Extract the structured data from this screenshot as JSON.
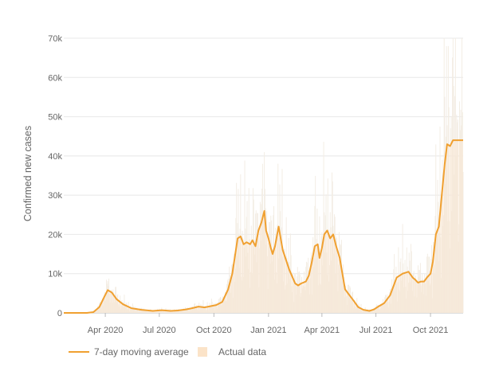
{
  "colors": {
    "line": "#f0a030",
    "actual_fill": "#fbe3c8",
    "actual_bar": "#f3ede4",
    "grid": "#e8e8e8",
    "text": "#666666"
  },
  "chart_data": {
    "type": "line",
    "ylabel": "Confirmed new cases",
    "xlabel": "",
    "title": "",
    "x_range": [
      "2020-01-22",
      "2021-11-25"
    ],
    "ylim": [
      0,
      70000
    ],
    "y_ticks": [
      0,
      10000,
      20000,
      30000,
      40000,
      50000,
      60000,
      70000
    ],
    "y_tick_labels": [
      "0",
      "10k",
      "20k",
      "30k",
      "40k",
      "50k",
      "60k",
      "70k"
    ],
    "x_ticks": [
      "2020-04-01",
      "2020-07-01",
      "2020-10-01",
      "2021-01-01",
      "2021-04-01",
      "2021-07-01",
      "2021-10-01"
    ],
    "x_tick_labels": [
      "Apr 2020",
      "Jul 2020",
      "Oct 2020",
      "Jan 2021",
      "Apr 2021",
      "Jul 2021",
      "Oct 2021"
    ],
    "grid": true,
    "legend_position": "bottom-left",
    "series": [
      {
        "name": "7-day moving average",
        "type": "line",
        "x": [
          "2020-01-22",
          "2020-03-01",
          "2020-03-12",
          "2020-03-22",
          "2020-03-30",
          "2020-04-05",
          "2020-04-12",
          "2020-04-20",
          "2020-05-01",
          "2020-05-15",
          "2020-06-01",
          "2020-06-20",
          "2020-07-05",
          "2020-07-12",
          "2020-07-20",
          "2020-08-01",
          "2020-08-15",
          "2020-08-25",
          "2020-09-05",
          "2020-09-15",
          "2020-09-25",
          "2020-10-05",
          "2020-10-15",
          "2020-10-25",
          "2020-11-01",
          "2020-11-05",
          "2020-11-10",
          "2020-11-15",
          "2020-11-20",
          "2020-11-25",
          "2020-12-01",
          "2020-12-05",
          "2020-12-10",
          "2020-12-15",
          "2020-12-20",
          "2020-12-25",
          "2020-12-28",
          "2021-01-01",
          "2021-01-05",
          "2021-01-08",
          "2021-01-12",
          "2021-01-18",
          "2021-01-25",
          "2021-02-05",
          "2021-02-15",
          "2021-02-20",
          "2021-02-25",
          "2021-03-05",
          "2021-03-10",
          "2021-03-15",
          "2021-03-20",
          "2021-03-25",
          "2021-03-28",
          "2021-04-01",
          "2021-04-05",
          "2021-04-10",
          "2021-04-15",
          "2021-04-20",
          "2021-04-25",
          "2021-05-01",
          "2021-05-05",
          "2021-05-10",
          "2021-05-15",
          "2021-05-20",
          "2021-05-25",
          "2021-06-01",
          "2021-06-10",
          "2021-06-20",
          "2021-06-28",
          "2021-07-05",
          "2021-07-15",
          "2021-07-25",
          "2021-08-05",
          "2021-08-15",
          "2021-08-25",
          "2021-09-01",
          "2021-09-05",
          "2021-09-10",
          "2021-09-15",
          "2021-09-20",
          "2021-09-25",
          "2021-10-01",
          "2021-10-05",
          "2021-10-10",
          "2021-10-15",
          "2021-10-20",
          "2021-10-25",
          "2021-10-29",
          "2021-11-03",
          "2021-11-08",
          "2021-11-13",
          "2021-11-18",
          "2021-11-22",
          "2021-11-25"
        ],
        "y": [
          0,
          0,
          200,
          1500,
          4000,
          5800,
          5200,
          3500,
          2200,
          1200,
          800,
          500,
          700,
          600,
          500,
          600,
          900,
          1200,
          1600,
          1400,
          1700,
          2000,
          2800,
          6000,
          10000,
          14000,
          19000,
          19500,
          17500,
          18000,
          17500,
          18500,
          17000,
          21000,
          23000,
          26000,
          21000,
          19000,
          16500,
          15000,
          17000,
          22000,
          16000,
          11000,
          7500,
          7000,
          7500,
          8000,
          9500,
          13000,
          17000,
          17500,
          14000,
          16500,
          20000,
          21000,
          19000,
          20000,
          17000,
          14000,
          10500,
          6000,
          5000,
          4000,
          3000,
          1500,
          800,
          500,
          900,
          1600,
          2500,
          4500,
          9000,
          10000,
          10500,
          9000,
          8500,
          7700,
          8000,
          8000,
          9000,
          10000,
          13000,
          20000,
          22000,
          30000,
          38000,
          43000,
          42500,
          44000,
          44000,
          44000,
          44000,
          44000
        ]
      },
      {
        "name": "Actual data",
        "type": "bar"
      }
    ]
  }
}
